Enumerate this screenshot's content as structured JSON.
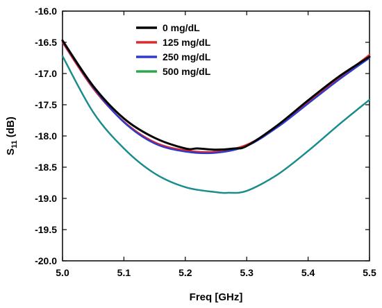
{
  "chart_data": {
    "type": "line",
    "xlabel": "Freq [GHz]",
    "ylabel": {
      "main": "S",
      "sub": "11",
      "unit": " (dB)"
    },
    "xlim": [
      5.0,
      5.5
    ],
    "ylim": [
      -20.0,
      -16.0
    ],
    "x_ticks": [
      "5.0",
      "5.1",
      "5.2",
      "5.3",
      "5.4",
      "5.5"
    ],
    "y_ticks": [
      "-16.0",
      "-16.5",
      "-17.0",
      "-17.5",
      "-18.0",
      "-18.5",
      "-19.0",
      "-19.5",
      "-20.0"
    ],
    "grid": false,
    "legend_position": "top-center",
    "series": [
      {
        "name": "0 mg/dL",
        "color": "#000000",
        "x": [
          5.0,
          5.05,
          5.1,
          5.15,
          5.2,
          5.22,
          5.25,
          5.28,
          5.3,
          5.35,
          5.4,
          5.45,
          5.5
        ],
        "y": [
          -16.47,
          -17.2,
          -17.72,
          -18.03,
          -18.2,
          -18.2,
          -18.22,
          -18.2,
          -18.16,
          -17.83,
          -17.43,
          -17.05,
          -16.73
        ]
      },
      {
        "name": "125 mg/dL",
        "color": "#e8252a",
        "x": [
          5.0,
          5.05,
          5.1,
          5.15,
          5.2,
          5.25,
          5.3,
          5.35,
          5.4,
          5.45,
          5.5
        ],
        "y": [
          -16.5,
          -17.24,
          -17.77,
          -18.1,
          -18.23,
          -18.25,
          -18.14,
          -17.84,
          -17.45,
          -17.08,
          -16.7
        ]
      },
      {
        "name": "250 mg/dL",
        "color": "#2e3ac8",
        "x": [
          5.0,
          5.05,
          5.1,
          5.15,
          5.2,
          5.25,
          5.3,
          5.35,
          5.4,
          5.45,
          5.5
        ],
        "y": [
          -16.48,
          -17.22,
          -17.78,
          -18.12,
          -18.25,
          -18.27,
          -18.16,
          -17.86,
          -17.48,
          -17.1,
          -16.75
        ]
      },
      {
        "name": "500 mg/dL",
        "color": "#1a8c8c",
        "legend_color": "#2aa84a",
        "x": [
          5.0,
          5.05,
          5.1,
          5.15,
          5.2,
          5.25,
          5.27,
          5.3,
          5.35,
          5.4,
          5.45,
          5.5
        ],
        "y": [
          -16.72,
          -17.62,
          -18.2,
          -18.6,
          -18.82,
          -18.9,
          -18.91,
          -18.88,
          -18.62,
          -18.24,
          -17.82,
          -17.42
        ]
      }
    ]
  }
}
